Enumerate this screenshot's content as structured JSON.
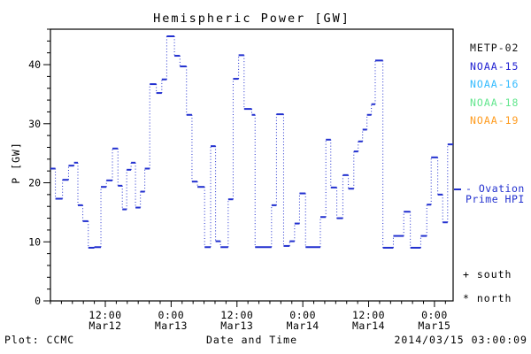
{
  "title": "Hemispheric Power [GW]",
  "footer": {
    "plot_credit": "Plot: CCMC",
    "timestamp": "2014/03/15 03:00:09"
  },
  "legend": {
    "satellites": [
      {
        "label": "METP-02",
        "color": "#141414"
      },
      {
        "label": "NOAA-15",
        "color": "#2222d2"
      },
      {
        "label": "NOAA-16",
        "color": "#33bbff"
      },
      {
        "label": "NOAA-18",
        "color": "#63e68e"
      },
      {
        "label": "NOAA-19",
        "color": "#ff9b1e"
      }
    ],
    "ovation_line_1": "- Ovation",
    "ovation_line_2": "Prime HPI",
    "ovation_color": "#2230cf",
    "south": "+ south",
    "north": "* north"
  },
  "chart_data": {
    "type": "line",
    "subtype": "step-post, solid horizontal segments joined by dotted vertical connectors",
    "title": "Hemispheric Power [GW]",
    "xlabel": "Date and Time",
    "ylabel": "P [GW]",
    "x_unit": "hours; axis spans approx 2014-03-12 02:00 UT to 2014-03-15 03:00 UT",
    "xlim": [
      0,
      73.4
    ],
    "ylim": [
      0,
      46
    ],
    "y_ticks": [
      0,
      10,
      20,
      30,
      40
    ],
    "y_minor_step": 2,
    "x_minor_step_hours": 2,
    "x_ticks": [
      {
        "t": 10,
        "line1": "12:00",
        "line2": "Mar12"
      },
      {
        "t": 22,
        "line1": "0:00",
        "line2": "Mar13"
      },
      {
        "t": 34,
        "line1": "12:00",
        "line2": "Mar13"
      },
      {
        "t": 46,
        "line1": "0:00",
        "line2": "Mar14"
      },
      {
        "t": 58,
        "line1": "12:00",
        "line2": "Mar14"
      },
      {
        "t": 70,
        "line1": "0:00",
        "line2": "Mar15"
      }
    ],
    "grid": false,
    "line_color": "#2230cf",
    "legend_entries": [
      "METP-02",
      "NOAA-15",
      "NOAA-16",
      "NOAA-18",
      "NOAA-19"
    ],
    "marker_legend": {
      "south": "+ south",
      "north": "* north"
    },
    "series": [
      {
        "name": "Ovation Prime HPI",
        "color": "#2230cf",
        "t_end": 73.4,
        "steps": [
          [
            0.0,
            22.4
          ],
          [
            0.9,
            17.3
          ],
          [
            2.2,
            20.5
          ],
          [
            3.3,
            22.9
          ],
          [
            4.3,
            23.4
          ],
          [
            5.0,
            16.2
          ],
          [
            5.9,
            13.5
          ],
          [
            6.9,
            9.0
          ],
          [
            8.0,
            9.1
          ],
          [
            9.2,
            19.3
          ],
          [
            10.2,
            20.4
          ],
          [
            11.3,
            25.8
          ],
          [
            12.3,
            19.5
          ],
          [
            13.1,
            15.5
          ],
          [
            13.9,
            22.2
          ],
          [
            14.7,
            23.4
          ],
          [
            15.5,
            15.8
          ],
          [
            16.4,
            18.5
          ],
          [
            17.2,
            22.4
          ],
          [
            18.1,
            36.7
          ],
          [
            19.3,
            35.2
          ],
          [
            20.3,
            37.5
          ],
          [
            21.2,
            44.8
          ],
          [
            22.6,
            41.5
          ],
          [
            23.6,
            39.7
          ],
          [
            24.8,
            31.5
          ],
          [
            25.8,
            20.2
          ],
          [
            26.8,
            19.3
          ],
          [
            28.1,
            9.1
          ],
          [
            29.2,
            26.2
          ],
          [
            30.1,
            10.1
          ],
          [
            31.0,
            9.1
          ],
          [
            32.4,
            17.2
          ],
          [
            33.3,
            37.6
          ],
          [
            34.3,
            41.6
          ],
          [
            35.3,
            32.5
          ],
          [
            36.7,
            31.5
          ],
          [
            37.3,
            9.1
          ],
          [
            40.3,
            16.2
          ],
          [
            41.2,
            31.6
          ],
          [
            42.5,
            9.3
          ],
          [
            43.6,
            10.1
          ],
          [
            44.5,
            13.1
          ],
          [
            45.4,
            18.2
          ],
          [
            46.5,
            9.1
          ],
          [
            49.2,
            14.2
          ],
          [
            50.2,
            27.3
          ],
          [
            51.1,
            19.2
          ],
          [
            52.2,
            14.0
          ],
          [
            53.3,
            21.3
          ],
          [
            54.3,
            19.0
          ],
          [
            55.3,
            25.3
          ],
          [
            56.1,
            27.0
          ],
          [
            56.9,
            29.0
          ],
          [
            57.7,
            31.5
          ],
          [
            58.5,
            33.3
          ],
          [
            59.2,
            40.7
          ],
          [
            60.6,
            9.0
          ],
          [
            62.5,
            11.0
          ],
          [
            64.4,
            15.1
          ],
          [
            65.6,
            9.0
          ],
          [
            67.5,
            11.0
          ],
          [
            68.6,
            16.3
          ],
          [
            69.4,
            24.3
          ],
          [
            70.6,
            18.0
          ],
          [
            71.5,
            13.3
          ],
          [
            72.4,
            26.5
          ]
        ]
      }
    ]
  }
}
